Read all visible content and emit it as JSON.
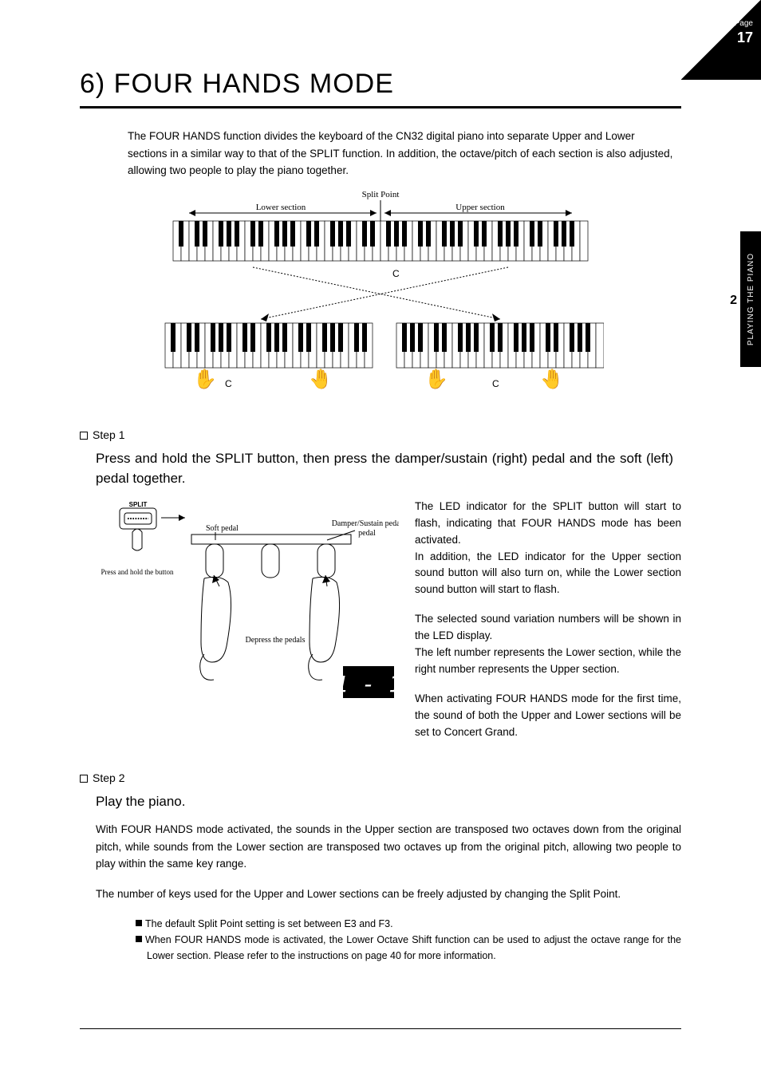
{
  "page": {
    "label": "Page",
    "number": "17"
  },
  "sidetab": {
    "text": "PLAYING THE PIANO",
    "chapter": "2"
  },
  "title": "6) FOUR HANDS MODE",
  "intro": "The FOUR HANDS function divides the keyboard of the CN32 digital piano into separate Upper and Lower sections in a similar way to that of the SPLIT function. In addition, the octave/pitch of each section is also adjusted, allowing two people to play the piano together.",
  "kbd_diagram": {
    "split_label": "Split Point",
    "lower_label": "Lower section",
    "upper_label": "Upper section",
    "c_label": "C",
    "full_white_keys": 52,
    "half_white_keys": 26,
    "white_key_w": 10,
    "white_key_h": 50,
    "black_key_w": 6,
    "black_key_h": 32
  },
  "step1": {
    "header": "Step 1",
    "instruction": "Press and hold the SPLIT button, then press the damper/sustain (right) pedal and the soft (left) pedal together.",
    "diagram": {
      "split_button": "SPLIT",
      "press_hold": "Press and hold the button",
      "soft_pedal": "Soft pedal",
      "damper_pedal": "Damper/Sustain pedal",
      "depress": "Depress the pedals",
      "display": "1 - 1"
    },
    "para1": "The LED indicator for the SPLIT button will start to flash, indicating that FOUR HANDS mode has been activated.",
    "para1b": "In addition, the LED indicator for the Upper section sound button will also turn on, while the Lower section sound button will start to flash.",
    "para2": "The selected sound variation numbers will be shown in the LED display.",
    "para2b": "The left number represents the Lower section, while the right number represents the Upper section.",
    "para3": "When activating FOUR HANDS mode for the first time, the sound of both the Upper and Lower sections will be set to Concert Grand."
  },
  "step2": {
    "header": "Step 2",
    "instruction": "Play the piano.",
    "p1": "With FOUR HANDS mode activated, the sounds in the Upper section are transposed two octaves down from the original pitch, while sounds from the Lower section are transposed two octaves up from the original pitch, allowing two people to play within the same key range.",
    "p2": "The number of keys used for the Upper and Lower sections can be freely adjusted by changing the Split Point.",
    "note1": "The default Split Point setting is set between E3 and F3.",
    "note2": "When FOUR HANDS mode is activated, the Lower Octave Shift function can be used to adjust the octave range for the Lower section. Please refer to the instructions on page 40 for more information."
  }
}
